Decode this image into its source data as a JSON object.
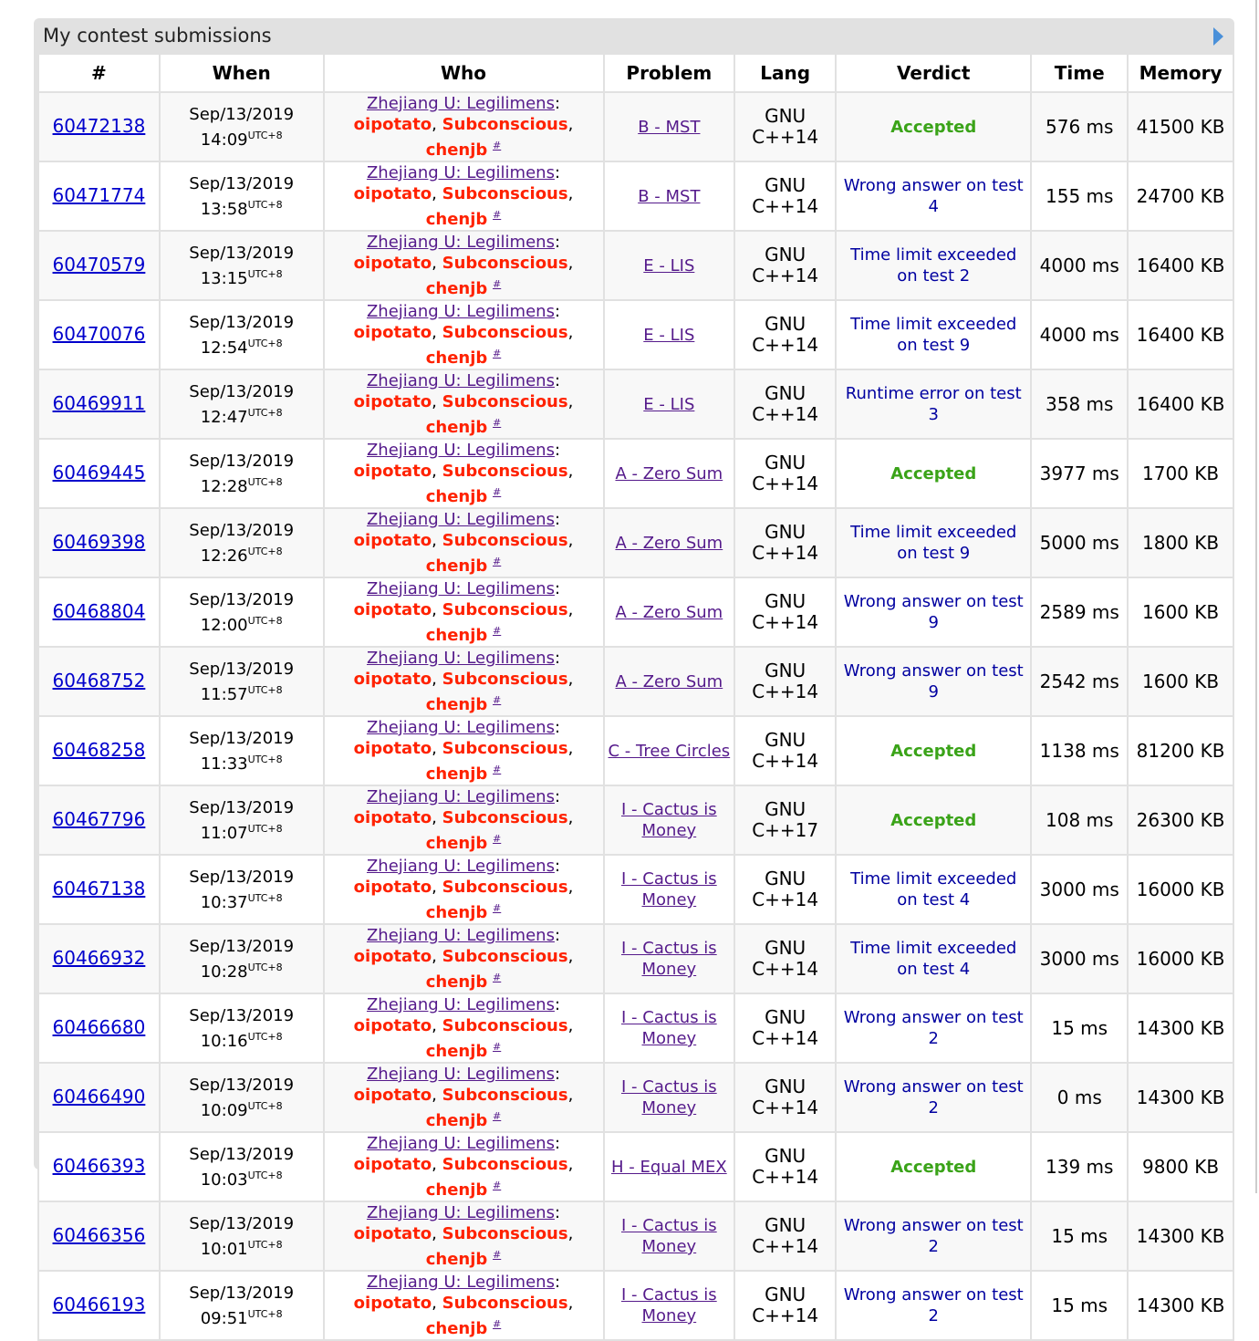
{
  "panel": {
    "title": "My contest submissions",
    "arrow_icon": "play-right-icon"
  },
  "columns": [
    "#",
    "When",
    "Who",
    "Problem",
    "Lang",
    "Verdict",
    "Time",
    "Memory"
  ],
  "team": "Zhejiang U: Legilimens",
  "members": [
    "oipotato",
    "Subconscious",
    "chenjb"
  ],
  "member_link": "#",
  "tz": "UTC+8",
  "colors": {
    "accepted": "#3aa318",
    "rejected": "#0000a0",
    "member": "#ff2200"
  },
  "rows": [
    {
      "id": "60472138",
      "date": "Sep/13/2019",
      "time": "14:09",
      "problem": "B - MST",
      "lang": "GNU C++14",
      "verdict": "Accepted",
      "ok": true,
      "t": "576 ms",
      "mem": "41500 KB"
    },
    {
      "id": "60471774",
      "date": "Sep/13/2019",
      "time": "13:58",
      "problem": "B - MST",
      "lang": "GNU C++14",
      "verdict": "Wrong answer on test 4",
      "ok": false,
      "t": "155 ms",
      "mem": "24700 KB"
    },
    {
      "id": "60470579",
      "date": "Sep/13/2019",
      "time": "13:15",
      "problem": "E - LIS",
      "lang": "GNU C++14",
      "verdict": "Time limit exceeded on test 2",
      "ok": false,
      "t": "4000 ms",
      "mem": "16400 KB"
    },
    {
      "id": "60470076",
      "date": "Sep/13/2019",
      "time": "12:54",
      "problem": "E - LIS",
      "lang": "GNU C++14",
      "verdict": "Time limit exceeded on test 9",
      "ok": false,
      "t": "4000 ms",
      "mem": "16400 KB"
    },
    {
      "id": "60469911",
      "date": "Sep/13/2019",
      "time": "12:47",
      "problem": "E - LIS",
      "lang": "GNU C++14",
      "verdict": "Runtime error on test 3",
      "ok": false,
      "t": "358 ms",
      "mem": "16400 KB"
    },
    {
      "id": "60469445",
      "date": "Sep/13/2019",
      "time": "12:28",
      "problem": "A - Zero Sum",
      "lang": "GNU C++14",
      "verdict": "Accepted",
      "ok": true,
      "t": "3977 ms",
      "mem": "1700 KB"
    },
    {
      "id": "60469398",
      "date": "Sep/13/2019",
      "time": "12:26",
      "problem": "A - Zero Sum",
      "lang": "GNU C++14",
      "verdict": "Time limit exceeded on test 9",
      "ok": false,
      "t": "5000 ms",
      "mem": "1800 KB"
    },
    {
      "id": "60468804",
      "date": "Sep/13/2019",
      "time": "12:00",
      "problem": "A - Zero Sum",
      "lang": "GNU C++14",
      "verdict": "Wrong answer on test 9",
      "ok": false,
      "t": "2589 ms",
      "mem": "1600 KB"
    },
    {
      "id": "60468752",
      "date": "Sep/13/2019",
      "time": "11:57",
      "problem": "A - Zero Sum",
      "lang": "GNU C++14",
      "verdict": "Wrong answer on test 9",
      "ok": false,
      "t": "2542 ms",
      "mem": "1600 KB"
    },
    {
      "id": "60468258",
      "date": "Sep/13/2019",
      "time": "11:33",
      "problem": "C - Tree Circles",
      "lang": "GNU C++14",
      "verdict": "Accepted",
      "ok": true,
      "t": "1138 ms",
      "mem": "81200 KB"
    },
    {
      "id": "60467796",
      "date": "Sep/13/2019",
      "time": "11:07",
      "problem": "I - Cactus is Money",
      "lang": "GNU C++17",
      "verdict": "Accepted",
      "ok": true,
      "t": "108 ms",
      "mem": "26300 KB"
    },
    {
      "id": "60467138",
      "date": "Sep/13/2019",
      "time": "10:37",
      "problem": "I - Cactus is Money",
      "lang": "GNU C++14",
      "verdict": "Time limit exceeded on test 4",
      "ok": false,
      "t": "3000 ms",
      "mem": "16000 KB"
    },
    {
      "id": "60466932",
      "date": "Sep/13/2019",
      "time": "10:28",
      "problem": "I - Cactus is Money",
      "lang": "GNU C++14",
      "verdict": "Time limit exceeded on test 4",
      "ok": false,
      "t": "3000 ms",
      "mem": "16000 KB"
    },
    {
      "id": "60466680",
      "date": "Sep/13/2019",
      "time": "10:16",
      "problem": "I - Cactus is Money",
      "lang": "GNU C++14",
      "verdict": "Wrong answer on test 2",
      "ok": false,
      "t": "15 ms",
      "mem": "14300 KB"
    },
    {
      "id": "60466490",
      "date": "Sep/13/2019",
      "time": "10:09",
      "problem": "I - Cactus is Money",
      "lang": "GNU C++14",
      "verdict": "Wrong answer on test 2",
      "ok": false,
      "t": "0 ms",
      "mem": "14300 KB"
    },
    {
      "id": "60466393",
      "date": "Sep/13/2019",
      "time": "10:03",
      "problem": "H - Equal MEX",
      "lang": "GNU C++14",
      "verdict": "Accepted",
      "ok": true,
      "t": "139 ms",
      "mem": "9800 KB"
    },
    {
      "id": "60466356",
      "date": "Sep/13/2019",
      "time": "10:01",
      "problem": "I - Cactus is Money",
      "lang": "GNU C++14",
      "verdict": "Wrong answer on test 2",
      "ok": false,
      "t": "15 ms",
      "mem": "14300 KB"
    },
    {
      "id": "60466193",
      "date": "Sep/13/2019",
      "time": "09:51",
      "problem": "I - Cactus is Money",
      "lang": "GNU C++14",
      "verdict": "Wrong answer on test 2",
      "ok": false,
      "t": "15 ms",
      "mem": "14300 KB"
    }
  ]
}
